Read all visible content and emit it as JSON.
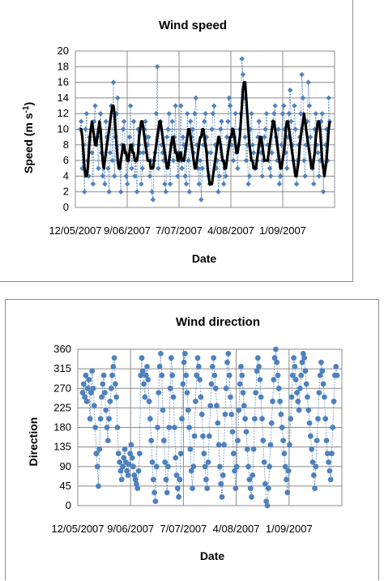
{
  "chart_data": [
    {
      "type": "line",
      "title": "Wind speed",
      "xlabel": "Date",
      "ylabel": "Speed (m s",
      "ylabel_sup": "-1",
      "ylim": [
        0,
        20
      ],
      "yticks": [
        0,
        2,
        4,
        6,
        8,
        10,
        12,
        14,
        16,
        18,
        20
      ],
      "xtick_labels": [
        "12/05/2007",
        "9/06/2007",
        "7/07/2007",
        "4/08/2007",
        "1/09/2007"
      ],
      "grid": true,
      "colors": {
        "points": "#4f81bd",
        "smoothed": "#000000"
      },
      "series": [
        {
          "values": [
            10,
            11,
            5,
            8,
            2,
            10,
            12,
            6,
            4,
            9,
            10,
            7,
            3,
            11,
            13,
            8,
            9,
            5,
            10,
            12,
            7,
            4,
            6,
            3,
            11,
            9,
            5,
            2,
            7,
            13,
            6,
            16,
            4,
            9,
            12,
            14,
            6,
            5,
            2,
            8,
            10,
            11,
            7,
            4,
            3,
            6,
            9,
            13,
            5,
            8,
            11,
            4,
            6,
            2,
            10,
            8,
            7,
            3,
            5,
            7,
            10,
            11,
            9,
            8,
            9,
            4,
            6,
            2,
            1,
            6,
            7,
            12,
            18,
            5,
            10,
            11,
            8,
            7,
            6,
            3,
            2,
            9,
            10,
            12,
            3,
            8,
            11,
            6,
            9,
            13,
            7,
            4,
            7,
            6,
            13,
            5,
            9,
            8,
            4,
            3,
            12,
            6,
            2,
            11,
            9,
            10,
            7,
            12,
            14,
            8,
            5,
            3,
            6,
            1,
            5,
            8,
            11,
            12,
            9,
            7,
            4,
            3,
            7,
            10,
            12,
            13,
            8,
            5,
            6,
            2,
            4,
            10,
            11,
            6,
            3,
            5,
            4,
            9,
            11,
            14,
            13,
            8,
            10,
            6,
            9,
            12,
            7,
            5,
            8,
            10,
            12,
            19,
            17,
            14,
            9,
            6,
            8,
            3,
            4,
            10,
            12,
            8,
            7,
            5,
            5,
            6,
            9,
            11,
            8,
            7,
            4,
            6,
            9,
            10,
            12,
            8,
            6,
            5,
            4,
            7,
            11,
            12,
            13,
            9,
            6,
            10,
            3,
            4,
            8,
            12,
            13,
            10,
            7,
            5,
            9,
            12,
            15,
            11,
            8,
            6,
            13,
            10,
            3,
            6,
            8,
            9,
            12,
            17,
            14,
            6,
            4,
            8,
            11,
            16,
            13,
            9,
            6,
            5,
            3,
            10,
            12,
            8,
            7,
            4,
            6,
            11,
            12,
            2,
            5,
            8,
            10,
            6,
            14,
            11
          ]
        },
        {
          "values": [
            10,
            10,
            9,
            7,
            5,
            4,
            4,
            5,
            7,
            9,
            10,
            11,
            10,
            9,
            8,
            8,
            9,
            10,
            11,
            10,
            8,
            6,
            5,
            6,
            7,
            8,
            9,
            10,
            11,
            12,
            13,
            13,
            12,
            10,
            8,
            6,
            5,
            5,
            6,
            7,
            8,
            8,
            7,
            7,
            6,
            6,
            7,
            8,
            8,
            7,
            7,
            6,
            6,
            6,
            7,
            9,
            10,
            11,
            11,
            10,
            9,
            8,
            7,
            6,
            6,
            6,
            5,
            5,
            5,
            6,
            7,
            8,
            9,
            10,
            11,
            11,
            10,
            9,
            8,
            7,
            6,
            5,
            5,
            6,
            7,
            8,
            9,
            9,
            8,
            7,
            7,
            6,
            6,
            7,
            7,
            6,
            6,
            6,
            7,
            8,
            9,
            10,
            10,
            9,
            8,
            7,
            6,
            5,
            5,
            6,
            7,
            8,
            9,
            9,
            10,
            10,
            9,
            8,
            7,
            5,
            4,
            3,
            3,
            3,
            4,
            5,
            6,
            7,
            8,
            9,
            9,
            8,
            7,
            6,
            6,
            5,
            5,
            6,
            7,
            8,
            9,
            9,
            10,
            10,
            9,
            8,
            7,
            7,
            8,
            9,
            11,
            13,
            15,
            16,
            16,
            14,
            12,
            10,
            8,
            7,
            6,
            6,
            5,
            5,
            5,
            6,
            7,
            8,
            9,
            9,
            8,
            7,
            6,
            6,
            6,
            6,
            7,
            8,
            9,
            10,
            11,
            11,
            10,
            9,
            8,
            7,
            6,
            5,
            5,
            6,
            7,
            8,
            10,
            11,
            11,
            10,
            9,
            8,
            7,
            6,
            5,
            4,
            4,
            5,
            6,
            8,
            9,
            10,
            11,
            12,
            11,
            10,
            9,
            8,
            7,
            6,
            5,
            5,
            6,
            7,
            9,
            10,
            11,
            11,
            10,
            8,
            6,
            5,
            4,
            5,
            6,
            8,
            10,
            11
          ]
        }
      ]
    },
    {
      "type": "scatter",
      "title": "Wind direction",
      "xlabel": "Date",
      "ylabel": "Direction",
      "ylim": [
        0,
        360
      ],
      "yticks": [
        0,
        45,
        90,
        135,
        180,
        225,
        270,
        315,
        360
      ],
      "xtick_labels": [
        "12/05/2007",
        "9/06/2007",
        "7/07/2007",
        "4/08/2007",
        "1/09/2007"
      ],
      "grid": true,
      "colors": {
        "points": "#4f81bd"
      },
      "series": [
        {
          "values": [
            260,
            280,
            250,
            300,
            240,
            270,
            290,
            200,
            260,
            310,
            270,
            230,
            180,
            120,
            90,
            45,
            130,
            200,
            250,
            280,
            300,
            260,
            220,
            180,
            150,
            200,
            240,
            270,
            300,
            320,
            340,
            280,
            250,
            180,
            120,
            100,
            80,
            60,
            90,
            110,
            130,
            100,
            80,
            70,
            95,
            120,
            140,
            110,
            90,
            70,
            60,
            50,
            40,
            80,
            120,
            300,
            340,
            310,
            280,
            250,
            300,
            320,
            290,
            240,
            200,
            150,
            100,
            60,
            30,
            10,
            90,
            180,
            260,
            320,
            350,
            300,
            220,
            150,
            100,
            60,
            30,
            90,
            180,
            270,
            340,
            300,
            250,
            180,
            110,
            70,
            40,
            20,
            60,
            120,
            200,
            280,
            330,
            350,
            300,
            260,
            220,
            180,
            130,
            80,
            40,
            90,
            160,
            240,
            300,
            340,
            320,
            290,
            250,
            210,
            160,
            120,
            90,
            60,
            40,
            100,
            160,
            230,
            280,
            320,
            340,
            300,
            270,
            230,
            190,
            140,
            90,
            50,
            20,
            70,
            140,
            210,
            270,
            330,
            350,
            300,
            250,
            210,
            170,
            120,
            80,
            40,
            90,
            150,
            220,
            280,
            320,
            300,
            260,
            230,
            200,
            170,
            130,
            90,
            60,
            40,
            20,
            70,
            130,
            200,
            260,
            310,
            340,
            320,
            290,
            250,
            200,
            150,
            100,
            50,
            10,
            0,
            40,
            90,
            140,
            190,
            240,
            290,
            340,
            360,
            330,
            300,
            270,
            240,
            210,
            180,
            150,
            120,
            90,
            60,
            30,
            80,
            140,
            200,
            250,
            300,
            340,
            320,
            290,
            260,
            240,
            220,
            270,
            300,
            330,
            350,
            340,
            310,
            280,
            250,
            220,
            190,
            160,
            130,
            100,
            70,
            40,
            90,
            150,
            200,
            260,
            300,
            330,
            310,
            280,
            250,
            200,
            150,
            120,
            100,
            80,
            60,
            120,
            180,
            240,
            300,
            320,
            300
          ]
        }
      ]
    }
  ]
}
